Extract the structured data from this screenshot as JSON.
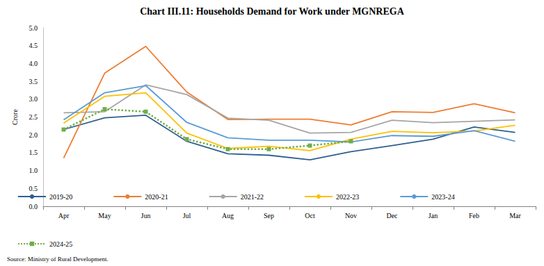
{
  "chart_data": {
    "type": "line",
    "title": "Chart III.11: Households Demand for Work under MGNREGA",
    "ylabel": "Crore",
    "source": "Source: Ministry of Rural Development.",
    "categories": [
      "Apr",
      "May",
      "Jun",
      "Jul",
      "Aug",
      "Sep",
      "Oct",
      "Nov",
      "Dec",
      "Jan",
      "Feb",
      "Mar"
    ],
    "ylim": [
      0,
      5
    ],
    "yticks": [
      {
        "value": 0,
        "label": "0.0"
      },
      {
        "value": 0.5,
        "label": "0.5"
      },
      {
        "value": 1,
        "label": "1.0"
      },
      {
        "value": 1.5,
        "label": "1.5"
      },
      {
        "value": 2,
        "label": "2.0"
      },
      {
        "value": 2.5,
        "label": "2.5"
      },
      {
        "value": 3,
        "label": "3.0"
      },
      {
        "value": 3.5,
        "label": "3.5"
      },
      {
        "value": 4,
        "label": "4.0"
      },
      {
        "value": 4.5,
        "label": "4.5"
      },
      {
        "value": 5,
        "label": "5.0"
      }
    ],
    "grid": false,
    "legend": "bottom",
    "series": [
      {
        "name": "2019-20",
        "color": "#2f5f8f",
        "marker": "none",
        "line_style": "solid",
        "values": [
          2.15,
          2.48,
          2.55,
          1.82,
          1.47,
          1.43,
          1.3,
          1.53,
          1.7,
          1.88,
          2.22,
          2.07
        ]
      },
      {
        "name": "2020-21",
        "color": "#ed7d31",
        "marker": "none",
        "line_style": "solid",
        "values": [
          1.35,
          3.73,
          4.48,
          3.2,
          2.43,
          2.44,
          2.44,
          2.28,
          2.65,
          2.63,
          2.87,
          2.62
        ]
      },
      {
        "name": "2021-22",
        "color": "#a5a5a5",
        "marker": "none",
        "line_style": "solid",
        "values": [
          2.62,
          2.65,
          3.4,
          3.13,
          2.47,
          2.41,
          2.05,
          2.07,
          2.41,
          2.34,
          2.38,
          2.42
        ]
      },
      {
        "name": "2022-23",
        "color": "#ffc000",
        "marker": "none",
        "line_style": "solid",
        "values": [
          2.33,
          3.08,
          3.18,
          2.05,
          1.62,
          1.68,
          1.56,
          1.88,
          2.1,
          2.06,
          2.11,
          2.27
        ]
      },
      {
        "name": "2023-24",
        "color": "#5b9bd5",
        "marker": "none",
        "line_style": "solid",
        "values": [
          2.42,
          3.18,
          3.38,
          2.35,
          1.92,
          1.85,
          1.85,
          1.8,
          1.98,
          1.96,
          2.12,
          1.82
        ]
      },
      {
        "name": "2024-25",
        "color": "#70ad47",
        "marker": "square",
        "line_style": "dotted",
        "values": [
          2.15,
          2.72,
          2.65,
          1.88,
          1.6,
          1.6,
          1.7,
          1.82,
          null,
          null,
          null,
          null
        ]
      }
    ]
  }
}
